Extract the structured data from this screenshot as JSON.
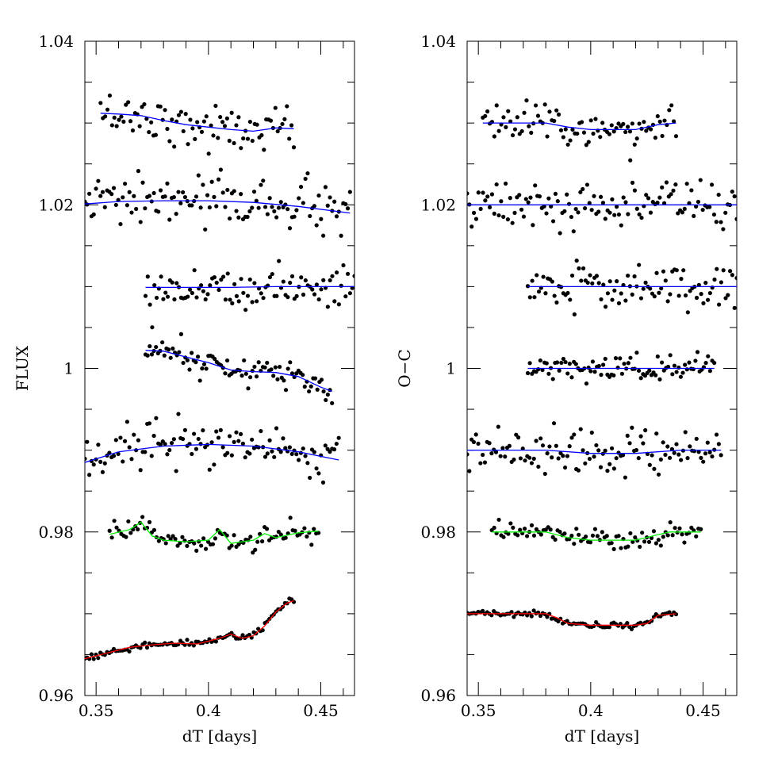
{
  "chart_data": [
    {
      "type": "scatter",
      "title": "",
      "xlabel": "dT [days]",
      "ylabel": "FLUX",
      "xlim": [
        0.345,
        0.465
      ],
      "ylim": [
        0.96,
        1.04
      ],
      "xticks": [
        0.35,
        0.4,
        0.45
      ],
      "xtick_labels": [
        "0.35",
        "0.4",
        "0.45"
      ],
      "yticks": [
        0.96,
        0.98,
        1,
        1.02,
        1.04
      ],
      "ytick_labels": [
        "0.96",
        "0.98",
        "1",
        "1.02",
        "1.04"
      ],
      "series": [
        {
          "color": "#0000ff",
          "x_start": 0.352,
          "x_end": 0.438,
          "n_points": 85,
          "scatter": 0.0013,
          "level": 1.03,
          "model": [
            [
              0.352,
              1.0312
            ],
            [
              0.36,
              1.0311
            ],
            [
              0.37,
              1.0309
            ],
            [
              0.38,
              1.0303
            ],
            [
              0.39,
              1.0298
            ],
            [
              0.4,
              1.0295
            ],
            [
              0.41,
              1.0292
            ],
            [
              0.42,
              1.029
            ],
            [
              0.425,
              1.0292
            ],
            [
              0.43,
              1.0294
            ],
            [
              0.438,
              1.0293
            ]
          ]
        },
        {
          "color": "#0000ff",
          "x_start": 0.345,
          "x_end": 0.463,
          "n_points": 120,
          "scatter": 0.0016,
          "level": 1.02,
          "model": [
            [
              0.345,
              1.0201
            ],
            [
              0.36,
              1.0204
            ],
            [
              0.38,
              1.0205
            ],
            [
              0.4,
              1.0205
            ],
            [
              0.42,
              1.0203
            ],
            [
              0.44,
              1.0198
            ],
            [
              0.463,
              1.019
            ]
          ]
        },
        {
          "color": "#0000ff",
          "x_start": 0.372,
          "x_end": 0.465,
          "n_points": 95,
          "scatter": 0.0014,
          "level": 1.01,
          "model": [
            [
              0.372,
              1.0099
            ],
            [
              0.39,
              1.0099
            ],
            [
              0.41,
              1.0099
            ],
            [
              0.43,
              1.01
            ],
            [
              0.465,
              1.01
            ]
          ]
        },
        {
          "color": "#0000ff",
          "x_start": 0.372,
          "x_end": 0.455,
          "n_points": 90,
          "scatter": 0.0009,
          "level": 1.0,
          "model": [
            [
              0.372,
              1.0022
            ],
            [
              0.38,
              1.0021
            ],
            [
              0.39,
              1.0014
            ],
            [
              0.4,
              1.0007
            ],
            [
              0.41,
              0.9998
            ],
            [
              0.42,
              0.9996
            ],
            [
              0.43,
              0.9995
            ],
            [
              0.44,
              0.999
            ],
            [
              0.45,
              0.9977
            ],
            [
              0.455,
              0.9972
            ]
          ]
        },
        {
          "color": "#0000ff",
          "x_start": 0.345,
          "x_end": 0.458,
          "n_points": 115,
          "scatter": 0.0014,
          "level": 0.99,
          "model": [
            [
              0.345,
              0.9885
            ],
            [
              0.36,
              0.9898
            ],
            [
              0.38,
              0.9905
            ],
            [
              0.4,
              0.9907
            ],
            [
              0.42,
              0.9905
            ],
            [
              0.44,
              0.9898
            ],
            [
              0.458,
              0.9888
            ]
          ]
        },
        {
          "color": "#00ee00",
          "x_start": 0.356,
          "x_end": 0.449,
          "n_points": 90,
          "scatter": 0.0007,
          "level": 0.98,
          "model": [
            [
              0.356,
              0.9797
            ],
            [
              0.365,
              0.9803
            ],
            [
              0.37,
              0.9812
            ],
            [
              0.375,
              0.9795
            ],
            [
              0.38,
              0.979
            ],
            [
              0.39,
              0.9788
            ],
            [
              0.4,
              0.979
            ],
            [
              0.405,
              0.9803
            ],
            [
              0.41,
              0.9786
            ],
            [
              0.42,
              0.979
            ],
            [
              0.425,
              0.9798
            ],
            [
              0.43,
              0.9793
            ],
            [
              0.44,
              0.9799
            ],
            [
              0.449,
              0.9801
            ]
          ]
        },
        {
          "color": "#ff0000",
          "x_start": 0.345,
          "x_end": 0.438,
          "n_points": 95,
          "scatter": 0.0002,
          "level": 0.966,
          "model": [
            [
              0.345,
              0.9645
            ],
            [
              0.355,
              0.9652
            ],
            [
              0.365,
              0.9659
            ],
            [
              0.375,
              0.9662
            ],
            [
              0.385,
              0.9664
            ],
            [
              0.395,
              0.9663
            ],
            [
              0.405,
              0.967
            ],
            [
              0.41,
              0.9675
            ],
            [
              0.415,
              0.967
            ],
            [
              0.42,
              0.9673
            ],
            [
              0.425,
              0.9685
            ],
            [
              0.43,
              0.9702
            ],
            [
              0.435,
              0.9713
            ],
            [
              0.438,
              0.9716
            ]
          ]
        }
      ]
    },
    {
      "type": "scatter",
      "title": "",
      "xlabel": "dT [days]",
      "ylabel": "O−C",
      "xlim": [
        0.345,
        0.465
      ],
      "ylim": [
        0.96,
        1.04
      ],
      "xticks": [
        0.35,
        0.4,
        0.45
      ],
      "xtick_labels": [
        "0.35",
        "0.4",
        "0.45"
      ],
      "yticks": [
        0.96,
        0.98,
        1,
        1.02,
        1.04
      ],
      "ytick_labels": [
        "0.96",
        "0.98",
        "1",
        "1.02",
        "1.04"
      ],
      "series": [
        {
          "color": "#0000ff",
          "x_start": 0.352,
          "x_end": 0.438,
          "n_points": 85,
          "scatter": 0.0013,
          "level": 1.03,
          "model": [
            [
              0.352,
              1.03
            ],
            [
              0.38,
              1.03
            ],
            [
              0.39,
              1.0295
            ],
            [
              0.4,
              1.0292
            ],
            [
              0.42,
              1.0292
            ],
            [
              0.43,
              1.0298
            ],
            [
              0.438,
              1.03
            ]
          ]
        },
        {
          "color": "#0000ff",
          "x_start": 0.345,
          "x_end": 0.465,
          "n_points": 120,
          "scatter": 0.0016,
          "level": 1.02,
          "model": [
            [
              0.345,
              1.02
            ],
            [
              0.465,
              1.02
            ]
          ]
        },
        {
          "color": "#0000ff",
          "x_start": 0.372,
          "x_end": 0.465,
          "n_points": 95,
          "scatter": 0.0014,
          "level": 1.01,
          "model": [
            [
              0.372,
              1.01
            ],
            [
              0.465,
              1.01
            ]
          ]
        },
        {
          "color": "#0000ff",
          "x_start": 0.372,
          "x_end": 0.455,
          "n_points": 90,
          "scatter": 0.0008,
          "level": 1.0,
          "model": [
            [
              0.372,
              1.0
            ],
            [
              0.455,
              1.0
            ]
          ]
        },
        {
          "color": "#0000ff",
          "x_start": 0.345,
          "x_end": 0.458,
          "n_points": 115,
          "scatter": 0.0012,
          "level": 0.99,
          "model": [
            [
              0.345,
              0.99
            ],
            [
              0.38,
              0.99
            ],
            [
              0.4,
              0.9896
            ],
            [
              0.42,
              0.9896
            ],
            [
              0.44,
              0.99
            ],
            [
              0.458,
              0.99
            ]
          ]
        },
        {
          "color": "#00ee00",
          "x_start": 0.356,
          "x_end": 0.449,
          "n_points": 90,
          "scatter": 0.0006,
          "level": 0.98,
          "model": [
            [
              0.356,
              0.98
            ],
            [
              0.38,
              0.98
            ],
            [
              0.39,
              0.9793
            ],
            [
              0.4,
              0.979
            ],
            [
              0.42,
              0.979
            ],
            [
              0.435,
              0.98
            ],
            [
              0.449,
              0.98
            ]
          ]
        },
        {
          "color": "#ff0000",
          "x_start": 0.345,
          "x_end": 0.438,
          "n_points": 95,
          "scatter": 0.0002,
          "level": 0.97,
          "model": [
            [
              0.345,
              0.97
            ],
            [
              0.38,
              0.97
            ],
            [
              0.385,
              0.9695
            ],
            [
              0.39,
              0.9688
            ],
            [
              0.4,
              0.9686
            ],
            [
              0.42,
              0.9686
            ],
            [
              0.425,
              0.9688
            ],
            [
              0.43,
              0.9698
            ],
            [
              0.438,
              0.97
            ]
          ]
        }
      ]
    }
  ]
}
